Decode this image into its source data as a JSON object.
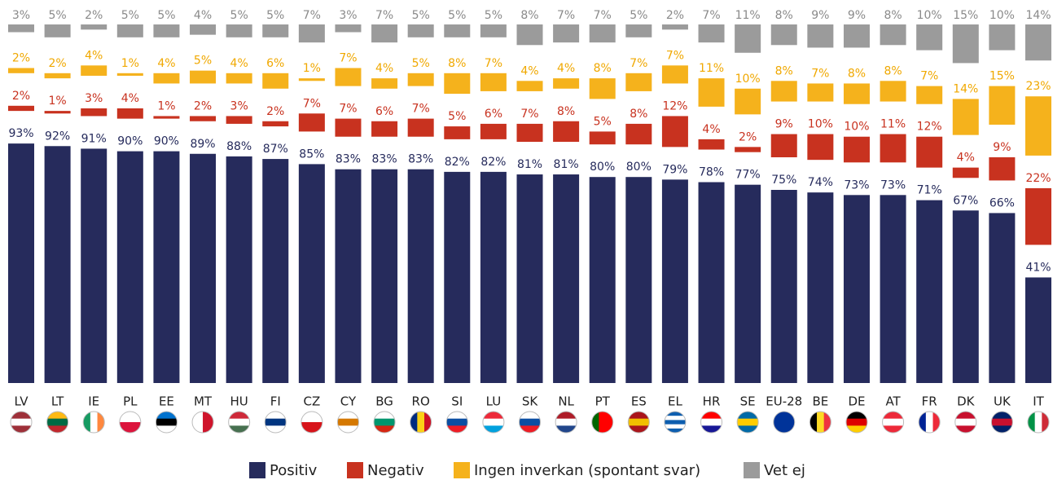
{
  "chart_data": {
    "type": "bar",
    "categories": [
      "LV",
      "LT",
      "IE",
      "PL",
      "EE",
      "MT",
      "HU",
      "FI",
      "CZ",
      "CY",
      "BG",
      "RO",
      "SI",
      "LU",
      "SK",
      "NL",
      "PT",
      "ES",
      "EL",
      "HR",
      "SE",
      "EU-28",
      "BE",
      "DE",
      "AT",
      "FR",
      "DK",
      "UK",
      "IT"
    ],
    "series": [
      {
        "name": "Positiv",
        "color": "#262b5c",
        "values": [
          93,
          92,
          91,
          90,
          90,
          89,
          88,
          87,
          85,
          83,
          83,
          83,
          82,
          82,
          81,
          81,
          80,
          80,
          79,
          78,
          77,
          75,
          74,
          73,
          73,
          71,
          67,
          66,
          41
        ],
        "value_labels": [
          "93%",
          "92%",
          "91%",
          "90%",
          "90%",
          "89%",
          "88%",
          "87%",
          "85%",
          "83%",
          "83%",
          "83%",
          "82%",
          "82%",
          "81%",
          "81%",
          "80%",
          "80%",
          "79%",
          "78%",
          "77%",
          "75%",
          "74%",
          "73%",
          "73%",
          "71%",
          "67%",
          "66%",
          "41%"
        ]
      },
      {
        "name": "Negativ",
        "color": "#c8321f",
        "values": [
          2,
          1,
          3,
          4,
          1,
          2,
          3,
          2,
          7,
          7,
          6,
          7,
          5,
          6,
          7,
          8,
          5,
          8,
          12,
          4,
          2,
          9,
          10,
          10,
          11,
          12,
          4,
          9,
          22
        ],
        "value_labels": [
          "2%",
          "1%",
          "3%",
          "4%",
          "1%",
          "2%",
          "3%",
          "2%",
          "7%",
          "7%",
          "6%",
          "7%",
          "5%",
          "6%",
          "7%",
          "8%",
          "5%",
          "8%",
          "12%",
          "4%",
          "2%",
          "9%",
          "10%",
          "10%",
          "11%",
          "12%",
          "4%",
          "9%",
          "22%"
        ]
      },
      {
        "name": "Ingen inverkan (spontant svar)",
        "color": "#f5b21c",
        "values": [
          2,
          2,
          4,
          1,
          4,
          5,
          4,
          6,
          1,
          7,
          4,
          5,
          8,
          7,
          4,
          4,
          8,
          7,
          7,
          11,
          10,
          8,
          7,
          8,
          8,
          7,
          14,
          15,
          23
        ],
        "value_labels": [
          "2%",
          "2%",
          "4%",
          "1%",
          "4%",
          "5%",
          "4%",
          "6%",
          "1%",
          "7%",
          "4%",
          "5%",
          "8%",
          "7%",
          "4%",
          "4%",
          "8%",
          "7%",
          "7%",
          "11%",
          "10%",
          "8%",
          "7%",
          "8%",
          "8%",
          "7%",
          "14%",
          "15%",
          "23%"
        ]
      },
      {
        "name": "Vet ej",
        "color": "#9b9b9b",
        "values": [
          3,
          5,
          2,
          5,
          5,
          4,
          5,
          5,
          7,
          3,
          7,
          5,
          5,
          5,
          8,
          7,
          7,
          5,
          2,
          7,
          11,
          8,
          9,
          9,
          8,
          10,
          15,
          10,
          14
        ],
        "value_labels": [
          "3%",
          "5%",
          "2%",
          "5%",
          "5%",
          "4%",
          "5%",
          "5%",
          "7%",
          "3%",
          "7%",
          "5%",
          "5%",
          "5%",
          "8%",
          "7%",
          "7%",
          "5%",
          "2%",
          "7%",
          "11%",
          "8%",
          "9%",
          "9%",
          "8%",
          "10%",
          "15%",
          "10%",
          "14%"
        ]
      }
    ]
  }
}
